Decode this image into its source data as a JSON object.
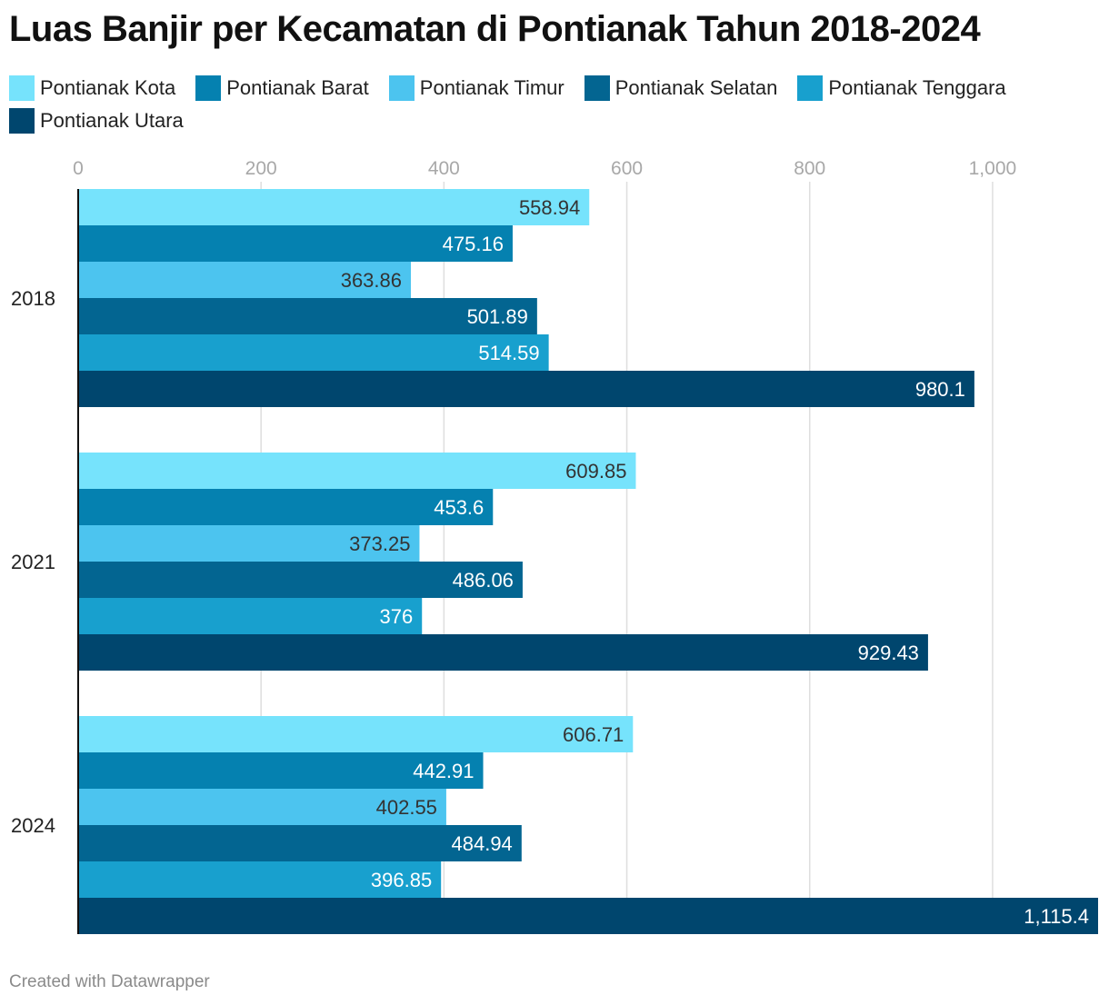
{
  "title": "Luas Banjir per Kecamatan di Pontianak Tahun 2018-2024",
  "footer": "Created with Datawrapper",
  "chart_data": {
    "type": "bar",
    "orientation": "horizontal",
    "title": "Luas Banjir per Kecamatan di Pontianak Tahun 2018-2024",
    "xlabel": "",
    "ylabel": "",
    "xlim": [
      0,
      1115.4
    ],
    "grid": true,
    "legend_position": "top",
    "ticks": [
      0,
      200,
      400,
      600,
      800,
      1000
    ],
    "tick_labels": [
      "0",
      "200",
      "400",
      "600",
      "800",
      "1,000"
    ],
    "categories": [
      "2018",
      "2021",
      "2024"
    ],
    "series": [
      {
        "name": "Pontianak Kota",
        "color": "#76e3fc",
        "label_color": "#333333",
        "values": [
          558.94,
          609.85,
          606.71
        ],
        "labels": [
          "558.94",
          "609.85",
          "606.71"
        ]
      },
      {
        "name": "Pontianak Barat",
        "color": "#0581b0",
        "label_color": "#ffffff",
        "values": [
          475.16,
          453.6,
          442.91
        ],
        "labels": [
          "475.16",
          "453.6",
          "442.91"
        ]
      },
      {
        "name": "Pontianak Timur",
        "color": "#4cc4ef",
        "label_color": "#333333",
        "values": [
          363.86,
          373.25,
          402.55
        ],
        "labels": [
          "363.86",
          "373.25",
          "402.55"
        ]
      },
      {
        "name": "Pontianak Selatan",
        "color": "#036591",
        "label_color": "#ffffff",
        "values": [
          501.89,
          486.06,
          484.94
        ],
        "labels": [
          "501.89",
          "486.06",
          "484.94"
        ]
      },
      {
        "name": "Pontianak Tenggara",
        "color": "#18a0ce",
        "label_color": "#ffffff",
        "values": [
          514.59,
          376,
          396.85
        ],
        "labels": [
          "514.59",
          "376",
          "396.85"
        ]
      },
      {
        "name": "Pontianak Utara",
        "color": "#00466e",
        "label_color": "#ffffff",
        "values": [
          980.1,
          929.43,
          1115.4
        ],
        "labels": [
          "980.1",
          "929.43",
          "1,115.4"
        ]
      }
    ]
  }
}
